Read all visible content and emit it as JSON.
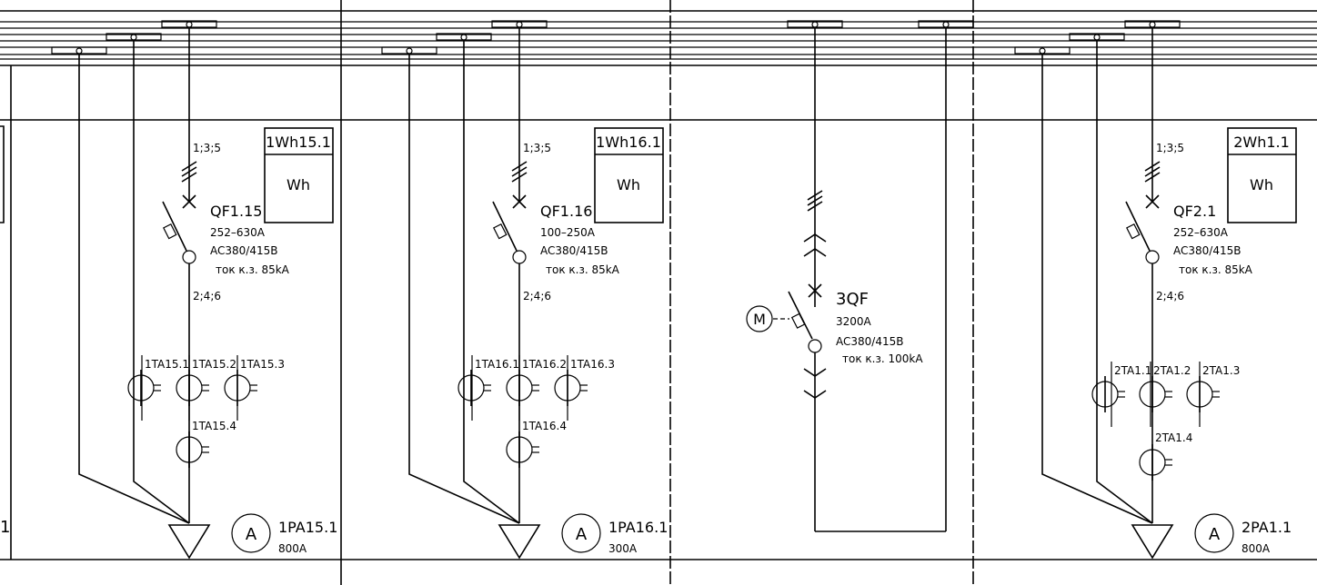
{
  "diagram": {
    "panels": [
      {
        "meter_tag": "1Wh15.1",
        "meter_symbol": "Wh",
        "pins_in": "1;3;5",
        "pins_out": "2;4;6",
        "breaker": {
          "tag": "QF1.15",
          "rating": "252–630A",
          "voltage": "AC380/415B",
          "short_circuit": "ток к.з. 85kA"
        },
        "ct_labels": [
          "1TA15.1",
          "1TA15.2",
          "1TA15.3",
          "1TA15.4"
        ],
        "ammeter": {
          "symbol": "A",
          "tag": "1PA15.1",
          "scale": "800A"
        }
      },
      {
        "meter_tag": "1Wh16.1",
        "meter_symbol": "Wh",
        "pins_in": "1;3;5",
        "pins_out": "2;4;6",
        "breaker": {
          "tag": "QF1.16",
          "rating": "100–250A",
          "voltage": "AC380/415B",
          "short_circuit": "ток к.з. 85kA"
        },
        "ct_labels": [
          "1TA16.1",
          "1TA16.2",
          "1TA16.3",
          "1TA16.4"
        ],
        "ammeter": {
          "symbol": "A",
          "tag": "1PA16.1",
          "scale": "300A"
        }
      },
      {
        "motor_symbol": "M",
        "breaker": {
          "tag": "3QF",
          "rating": "3200A",
          "voltage": "AC380/415B",
          "short_circuit": "ток к.з. 100kA"
        }
      },
      {
        "meter_tag": "2Wh1.1",
        "meter_symbol": "Wh",
        "pins_in": "1;3;5",
        "pins_out": "2;4;6",
        "breaker": {
          "tag": "QF2.1",
          "rating": "252–630A",
          "voltage": "AC380/415B",
          "short_circuit": "ток к.з. 85kA"
        },
        "ct_labels": [
          "2TA1.1",
          "2TA1.2",
          "2TA1.3",
          "2TA1.4"
        ],
        "ammeter": {
          "symbol": "A",
          "tag": "2PA1.1",
          "scale": "800A"
        }
      }
    ],
    "edge_fragment": "1"
  }
}
